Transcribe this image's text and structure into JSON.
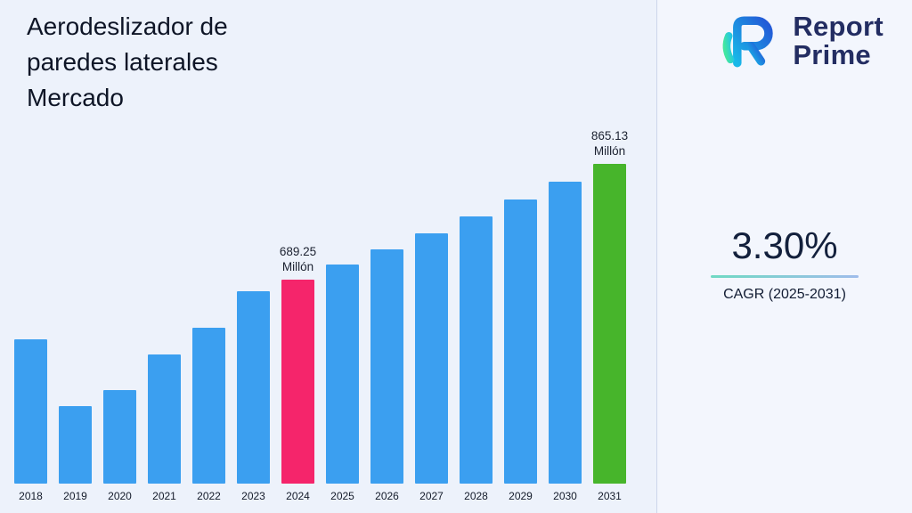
{
  "title": "Aerodeslizador de paredes laterales Mercado",
  "logo": {
    "line1": "Report",
    "line2": "Prime"
  },
  "cagr": {
    "value": "3.30%",
    "label": "CAGR (2025-2031)"
  },
  "chart_data": {
    "type": "bar",
    "title": "Aerodeslizador de paredes laterales Mercado",
    "xlabel": "",
    "ylabel": "Millón",
    "unit": "Millón",
    "ylim": [
      380,
      880
    ],
    "grid": false,
    "legend": "none",
    "categories": [
      "2018",
      "2019",
      "2020",
      "2021",
      "2022",
      "2023",
      "2024",
      "2025",
      "2026",
      "2027",
      "2028",
      "2029",
      "2030",
      "2031"
    ],
    "values": [
      599,
      497,
      522,
      576,
      616,
      672,
      689.25,
      712,
      735.5,
      759.8,
      784.8,
      810.7,
      837.5,
      865.13
    ],
    "colors": {
      "default": "#3b9ff0",
      "highlight_current": "#f5256b",
      "forecast_final": "#47b52b"
    },
    "points": [
      {
        "year": "2018",
        "value": 599,
        "color": "#3b9ff0"
      },
      {
        "year": "2019",
        "value": 497,
        "color": "#3b9ff0"
      },
      {
        "year": "2020",
        "value": 522,
        "color": "#3b9ff0"
      },
      {
        "year": "2021",
        "value": 576,
        "color": "#3b9ff0"
      },
      {
        "year": "2022",
        "value": 616,
        "color": "#3b9ff0"
      },
      {
        "year": "2023",
        "value": 672,
        "color": "#3b9ff0"
      },
      {
        "year": "2024",
        "value": 689.25,
        "color": "#f5256b",
        "label": [
          "689.25",
          "Millón"
        ]
      },
      {
        "year": "2025",
        "value": 712,
        "color": "#3b9ff0"
      },
      {
        "year": "2026",
        "value": 735.5,
        "color": "#3b9ff0"
      },
      {
        "year": "2027",
        "value": 759.8,
        "color": "#3b9ff0"
      },
      {
        "year": "2028",
        "value": 784.8,
        "color": "#3b9ff0"
      },
      {
        "year": "2029",
        "value": 810.7,
        "color": "#3b9ff0"
      },
      {
        "year": "2030",
        "value": 837.5,
        "color": "#3b9ff0"
      },
      {
        "year": "2031",
        "value": 865.13,
        "color": "#47b52b",
        "label": [
          "865.13",
          "Millón"
        ]
      }
    ]
  }
}
